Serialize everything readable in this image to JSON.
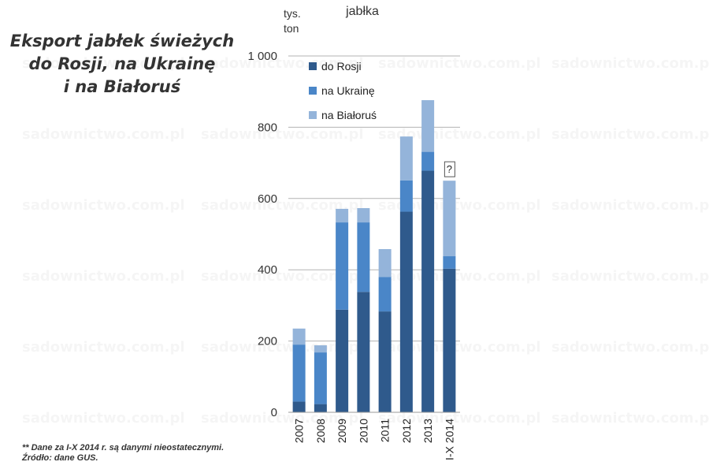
{
  "headline": {
    "line1": "Eksport jabłek świeżych",
    "line2": "do Rosji, na Ukrainę",
    "line3": "i na Białoruś"
  },
  "footnote": {
    "line1": "** Dane za I-X 2014 r. są danymi nieostatecznymi.",
    "line2": "Źródło: dane GUS."
  },
  "watermark": "sadownictwo.com.pl",
  "chart_data": {
    "type": "bar",
    "stacked": true,
    "title": "jabłka",
    "ylabel_line1": "tys.",
    "ylabel_line2": "ton",
    "categories": [
      "2007",
      "2008",
      "2009",
      "2010",
      "2011",
      "2012",
      "2013",
      "I-X 2014"
    ],
    "series": [
      {
        "name": "do Rosji",
        "color": "#2f5a8c",
        "values": [
          30,
          23,
          288,
          338,
          283,
          563,
          678,
          403
        ]
      },
      {
        "name": "na Ukrainę",
        "color": "#4a86c8",
        "values": [
          160,
          145,
          245,
          195,
          97,
          88,
          53,
          35
        ]
      },
      {
        "name": "na Białoruś",
        "color": "#94b4da",
        "values": [
          45,
          20,
          38,
          40,
          78,
          123,
          145,
          212
        ]
      }
    ],
    "yticks": [
      0,
      200,
      400,
      600,
      800,
      1000
    ],
    "ytick_labels": [
      "0",
      "200",
      "400",
      "600",
      "800",
      "1 000"
    ],
    "ylim": [
      0,
      1000
    ],
    "grid": true,
    "legend_position": "top-left inside plot",
    "annotation": {
      "category": "I-X 2014",
      "text": "?"
    }
  }
}
